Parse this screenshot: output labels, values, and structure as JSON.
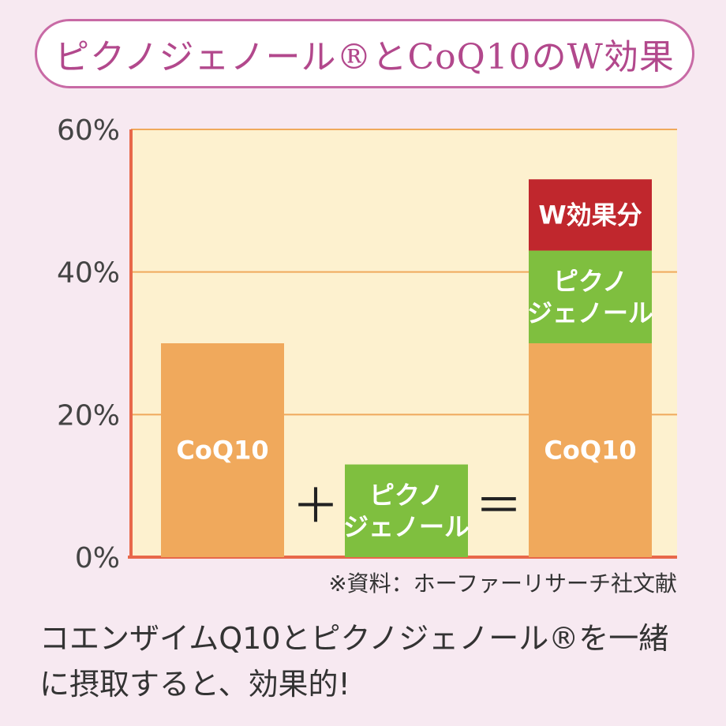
{
  "header": {
    "title": "ピクノジェノール®とCoQ10のW効果"
  },
  "chart_data": {
    "type": "bar",
    "title": "ピクノジェノール®とCoQ10のW効果",
    "ylim": [
      0,
      60
    ],
    "yticks": [
      0,
      20,
      40,
      60
    ],
    "ytick_labels": [
      "0%",
      "20%",
      "40%",
      "60%"
    ],
    "grid": true,
    "bars": [
      {
        "segments": [
          {
            "label": "CoQ10",
            "value": 30,
            "color": "#f0a95c"
          }
        ]
      },
      {
        "segments": [
          {
            "label": "ピクノ\nジェノール",
            "value": 13,
            "color": "#7fbf3f"
          }
        ]
      },
      {
        "segments": [
          {
            "label": "CoQ10",
            "value": 30,
            "color": "#f0a95c"
          },
          {
            "label": "ピクノ\nジェノール",
            "value": 13,
            "color": "#7fbf3f"
          },
          {
            "label": "W効果分",
            "value": 10,
            "color": "#c0272d"
          }
        ]
      }
    ],
    "operators": [
      "＋",
      "＝"
    ],
    "plot_bg": "#fdf1cf",
    "grid_color": "#f0a95c",
    "axis_color": "#e8684a"
  },
  "source": "※資料：ホーファーリサーチ社文献",
  "caption": "コエンザイムQ10とピクノジェノール®を一緒に摂取すると、効果的!"
}
